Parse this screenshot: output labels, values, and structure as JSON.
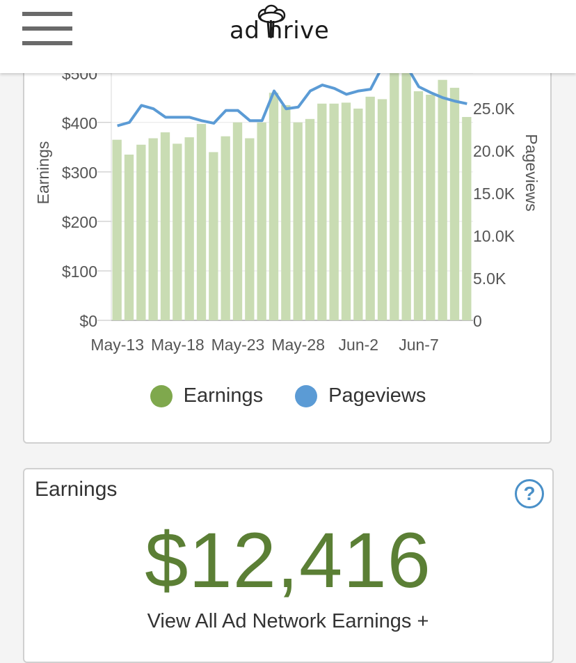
{
  "header": {
    "logo_text": "ad hrive",
    "menu_icon": "hamburger-menu-icon",
    "logo_icon": "tree-icon"
  },
  "colors": {
    "earnings_bar": "#c9dcb3",
    "earnings_legend": "#7fa84d",
    "pageviews_line": "#5b9bd5",
    "amount": "#5b7f35"
  },
  "chart_data": {
    "type": "bar",
    "title": "",
    "y_left_label": "Earnings",
    "y_right_label": "Pageviews",
    "y_left_ticks": [
      "$0",
      "$100",
      "$200",
      "$300",
      "$400",
      "$500"
    ],
    "y_right_ticks": [
      "0",
      "5.0K",
      "10.0K",
      "15.0K",
      "20.0K",
      "25.0K"
    ],
    "y_left_range": [
      0,
      500
    ],
    "y_right_range": [
      0,
      30000
    ],
    "x_tick_labels": [
      "May-13",
      "May-18",
      "May-23",
      "May-28",
      "Jun-2",
      "Jun-7"
    ],
    "categories": [
      "May-13",
      "May-14",
      "May-15",
      "May-16",
      "May-17",
      "May-18",
      "May-19",
      "May-20",
      "May-21",
      "May-22",
      "May-23",
      "May-24",
      "May-25",
      "May-26",
      "May-27",
      "May-28",
      "May-29",
      "May-30",
      "May-31",
      "Jun-1",
      "Jun-2",
      "Jun-3",
      "Jun-4",
      "Jun-5",
      "Jun-6",
      "Jun-7",
      "Jun-8",
      "Jun-9",
      "Jun-10",
      "Jun-11"
    ],
    "series": [
      {
        "name": "Earnings",
        "type": "bar",
        "axis": "left",
        "values": [
          365,
          335,
          355,
          368,
          380,
          357,
          370,
          397,
          340,
          372,
          400,
          368,
          400,
          460,
          435,
          400,
          407,
          438,
          438,
          440,
          428,
          452,
          447,
          500,
          500,
          463,
          456,
          486,
          470,
          411
        ]
      },
      {
        "name": "Pageviews",
        "type": "line",
        "axis": "right",
        "values": [
          22900,
          23300,
          25300,
          24900,
          23900,
          23900,
          23900,
          23500,
          23200,
          24700,
          24700,
          23500,
          23500,
          27000,
          24900,
          25100,
          27000,
          27700,
          27300,
          26600,
          27000,
          27200,
          31500,
          32500,
          31000,
          27500,
          26800,
          26200,
          25800,
          25500
        ]
      }
    ],
    "legend": [
      "Earnings",
      "Pageviews"
    ],
    "legend_position": "bottom",
    "grid": true
  },
  "earnings_card": {
    "title": "Earnings",
    "amount": "$12,416",
    "link": "View All Ad Network Earnings +",
    "help_icon": "help-icon",
    "help_glyph": "?"
  }
}
